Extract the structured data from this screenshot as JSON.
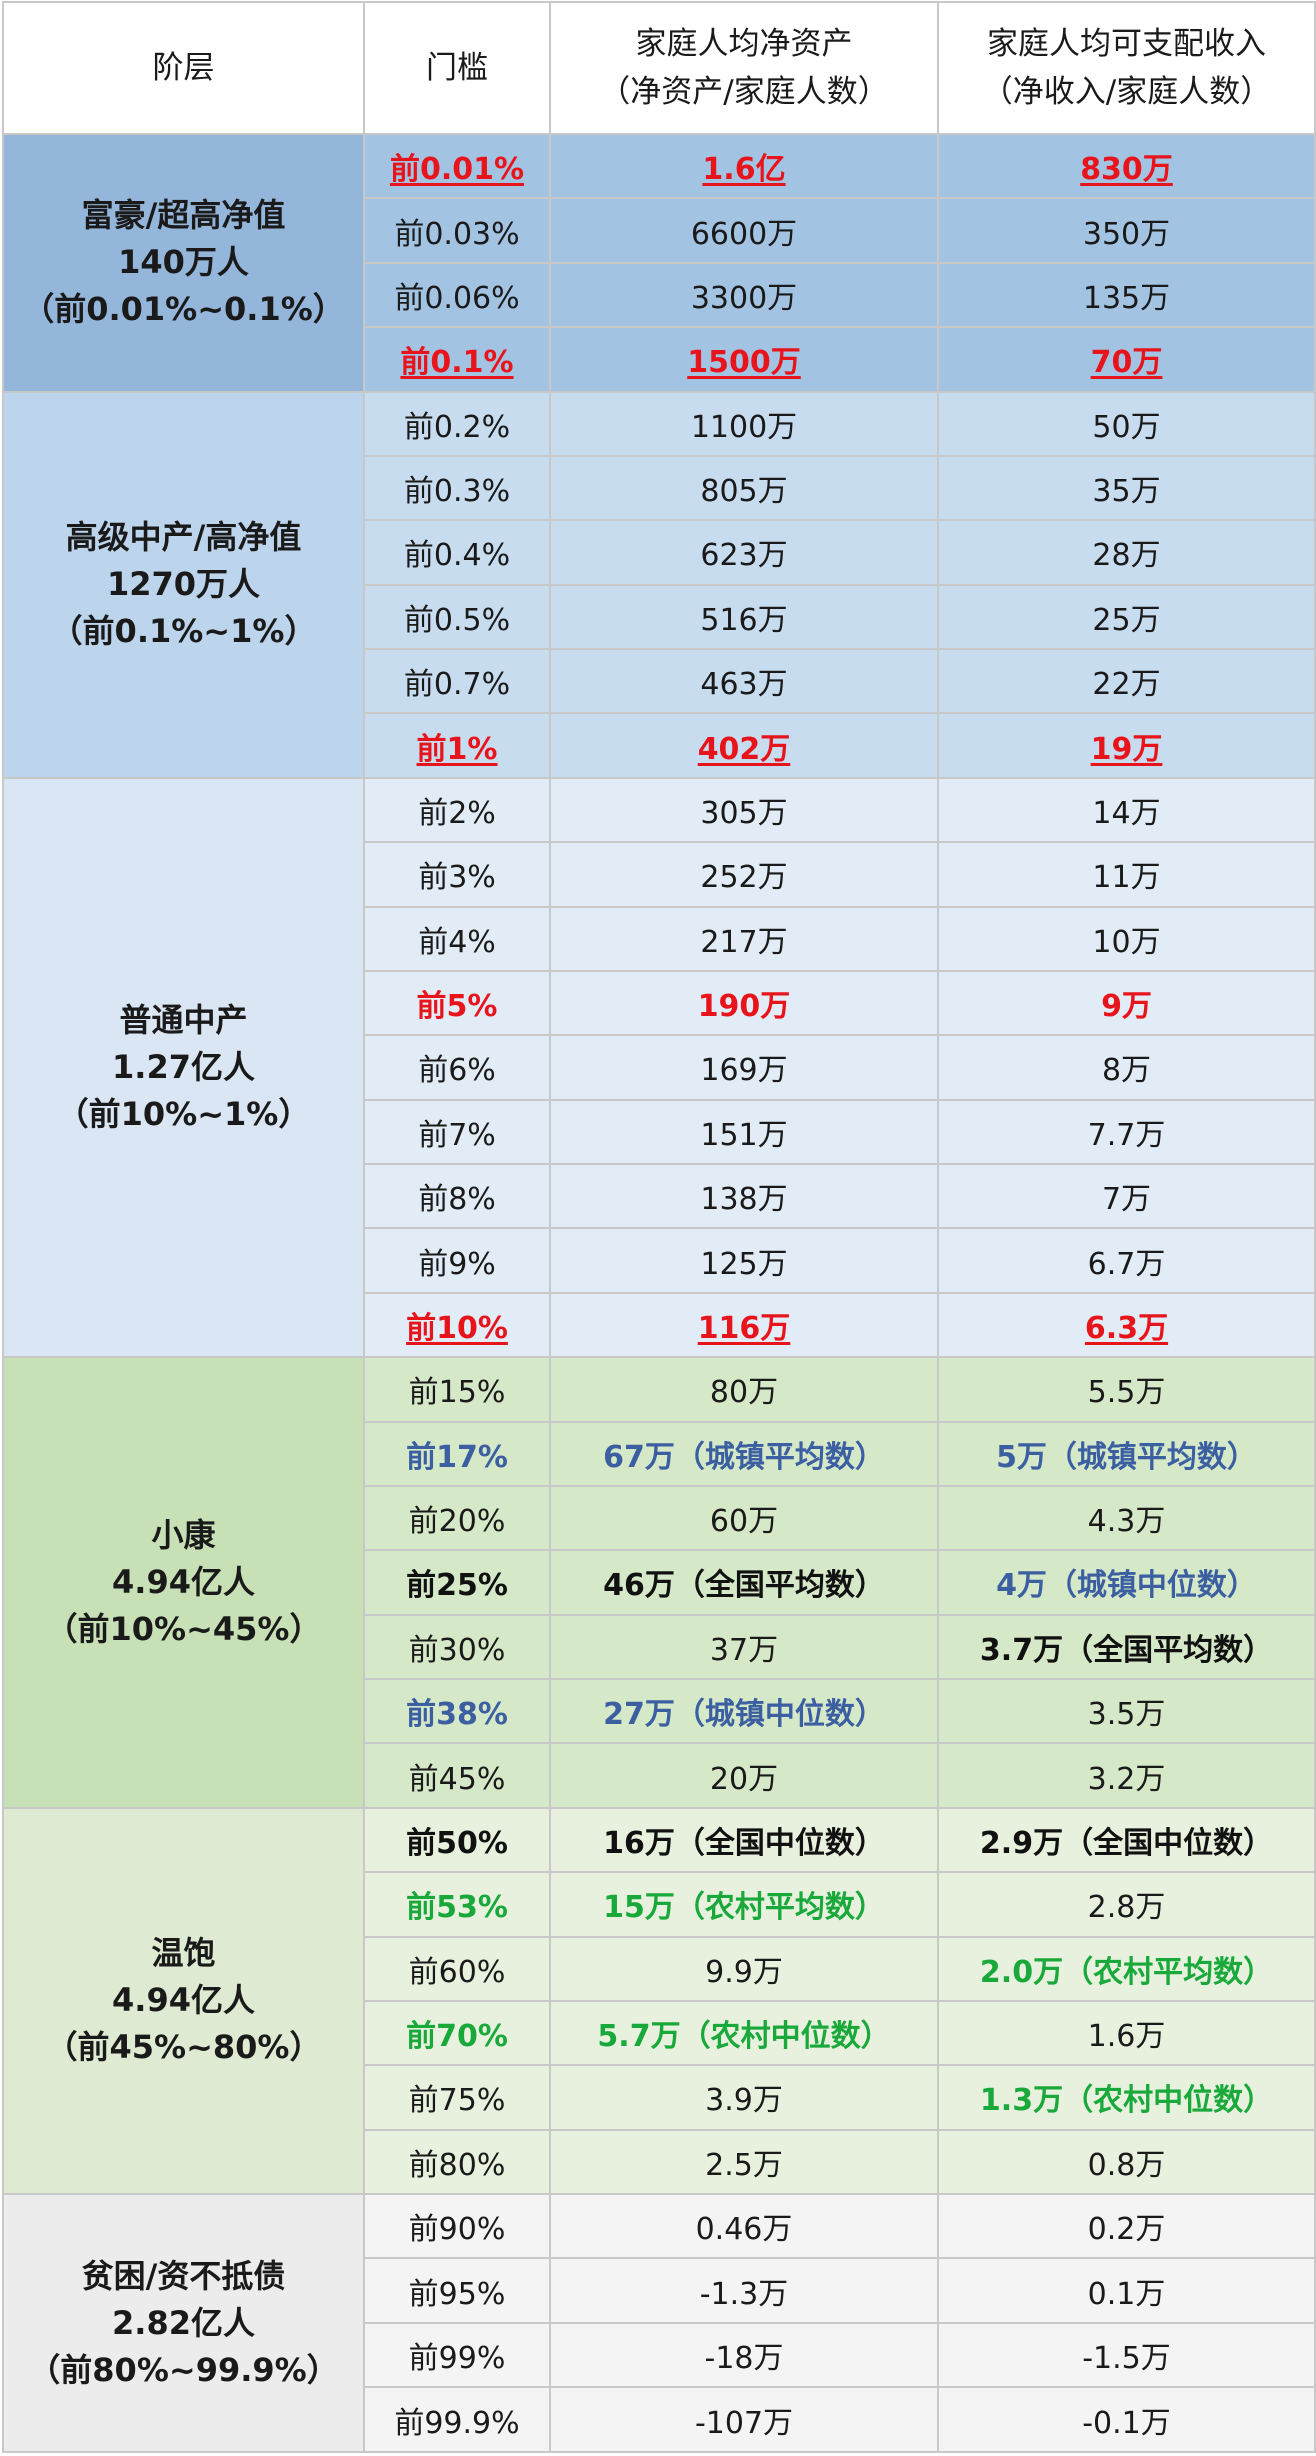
{
  "header": {
    "tier": "阶层",
    "threshold": "门槛",
    "asset_line1": "家庭人均净资产",
    "asset_line2": "（净资产/家庭人数）",
    "income_line1": "家庭人均可支配收入",
    "income_line2": "（净收入/家庭人数）"
  },
  "groups": [
    {
      "tier": [
        "富豪/超高净值",
        "140万人",
        "（前0.01%~0.1%）"
      ],
      "rows": [
        {
          "t": "前0.01%",
          "a": "1.6亿",
          "i": "830万",
          "st": "red u",
          "sa": "red u",
          "si": "red u"
        },
        {
          "t": "前0.03%",
          "a": "6600万",
          "i": "350万"
        },
        {
          "t": "前0.06%",
          "a": "3300万",
          "i": "135万"
        },
        {
          "t": "前0.1%",
          "a": "1500万",
          "i": "70万",
          "st": "red u",
          "sa": "red u",
          "si": "red u"
        }
      ]
    },
    {
      "tier": [
        "高级中产/高净值",
        "1270万人",
        "（前0.1%~1%）"
      ],
      "rows": [
        {
          "t": "前0.2%",
          "a": "1100万",
          "i": "50万"
        },
        {
          "t": "前0.3%",
          "a": "805万",
          "i": "35万"
        },
        {
          "t": "前0.4%",
          "a": "623万",
          "i": "28万"
        },
        {
          "t": "前0.5%",
          "a": "516万",
          "i": "25万"
        },
        {
          "t": "前0.7%",
          "a": "463万",
          "i": "22万"
        },
        {
          "t": "前1%",
          "a": "402万",
          "i": "19万",
          "st": "red u",
          "sa": "red u",
          "si": "red u"
        }
      ]
    },
    {
      "tier": [
        "普通中产",
        "1.27亿人",
        "（前10%~1%）"
      ],
      "rows": [
        {
          "t": "前2%",
          "a": "305万",
          "i": "14万"
        },
        {
          "t": "前3%",
          "a": "252万",
          "i": "11万"
        },
        {
          "t": "前4%",
          "a": "217万",
          "i": "10万"
        },
        {
          "t": "前5%",
          "a": "190万",
          "i": "9万",
          "st": "red",
          "sa": "red",
          "si": "red"
        },
        {
          "t": "前6%",
          "a": "169万",
          "i": "8万"
        },
        {
          "t": "前7%",
          "a": "151万",
          "i": "7.7万"
        },
        {
          "t": "前8%",
          "a": "138万",
          "i": "7万"
        },
        {
          "t": "前9%",
          "a": "125万",
          "i": "6.7万"
        },
        {
          "t": "前10%",
          "a": "116万",
          "i": "6.3万",
          "st": "red u",
          "sa": "red u",
          "si": "red u"
        }
      ]
    },
    {
      "tier": [
        "小康",
        "4.94亿人",
        "（前10%~45%）"
      ],
      "rows": [
        {
          "t": "前15%",
          "a": "80万",
          "i": "5.5万"
        },
        {
          "t": "前17%",
          "a": "67万（城镇平均数）",
          "i": "5万（城镇平均数）",
          "st": "blue",
          "sa": "blue",
          "si": "blue"
        },
        {
          "t": "前20%",
          "a": "60万",
          "i": "4.3万"
        },
        {
          "t": "前25%",
          "a": "46万（全国平均数）",
          "i": "4万（城镇中位数）",
          "st": "bold",
          "sa": "bold",
          "si": "blue"
        },
        {
          "t": "前30%",
          "a": "37万",
          "i": "3.7万（全国平均数）",
          "si": "bold"
        },
        {
          "t": "前38%",
          "a": "27万（城镇中位数）",
          "i": "3.5万",
          "st": "blue",
          "sa": "blue"
        },
        {
          "t": "前45%",
          "a": "20万",
          "i": "3.2万"
        }
      ]
    },
    {
      "tier": [
        "温饱",
        "4.94亿人",
        "（前45%~80%）"
      ],
      "rows": [
        {
          "t": "前50%",
          "a": "16万（全国中位数）",
          "i": "2.9万（全国中位数）",
          "st": "bold",
          "sa": "bold",
          "si": "bold"
        },
        {
          "t": "前53%",
          "a": "15万（农村平均数）",
          "i": "2.8万",
          "st": "green",
          "sa": "green"
        },
        {
          "t": "前60%",
          "a": "9.9万",
          "i": "2.0万（农村平均数）",
          "si": "green"
        },
        {
          "t": "前70%",
          "a": "5.7万（农村中位数）",
          "i": "1.6万",
          "st": "green",
          "sa": "green"
        },
        {
          "t": "前75%",
          "a": "3.9万",
          "i": "1.3万（农村中位数）",
          "si": "green"
        },
        {
          "t": "前80%",
          "a": "2.5万",
          "i": "0.8万"
        }
      ]
    },
    {
      "tier": [
        "贫困/资不抵债",
        "2.82亿人",
        "（前80%~99.9%）"
      ],
      "rows": [
        {
          "t": "前90%",
          "a": "0.46万",
          "i": "0.2万"
        },
        {
          "t": "前95%",
          "a": "-1.3万",
          "i": "0.1万"
        },
        {
          "t": "前99%",
          "a": "-18万",
          "i": "-1.5万"
        },
        {
          "t": "前99.9%",
          "a": "-107万",
          "i": "-0.1万"
        }
      ]
    }
  ]
}
